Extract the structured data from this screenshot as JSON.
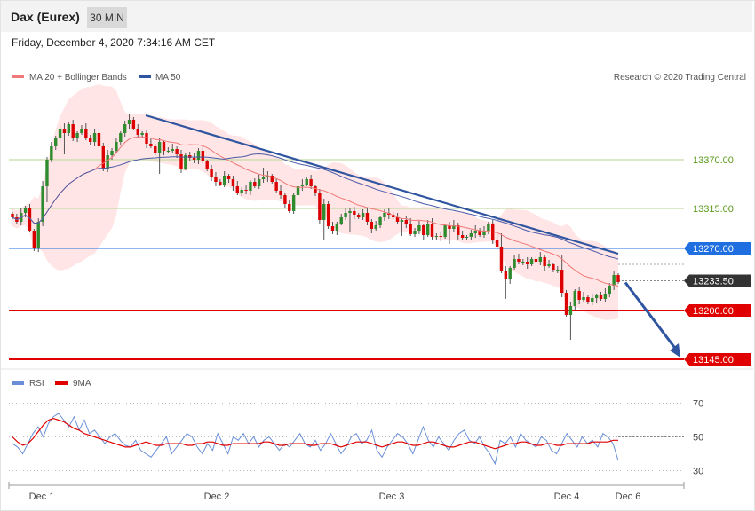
{
  "header": {
    "title": "Dax (Eurex)",
    "timeframe": "30 MIN"
  },
  "timestamp": "Friday, December 4, 2020 7:34:16 AM CET",
  "legend": {
    "ma20_label": "MA 20 + Bollinger Bands",
    "ma50_label": "MA 50",
    "credit": "Research © 2020 Trading Central",
    "rsi_label": "RSI",
    "rsi_ma_label": "9MA"
  },
  "colors": {
    "up": "#2e8b2e",
    "down": "#dd0000",
    "ma20": "#f07878",
    "bands": "#ffdcdc",
    "ma50": "#4a5aa8",
    "trendline": "#2f55a0",
    "support_line": "#e00000",
    "resistance_green": "#c8dca8",
    "blue_level": "#1f6fe0",
    "rsi": "#6a8fd8",
    "rsi_ma": "#e00000"
  },
  "chart_data": [
    {
      "type": "candlestick",
      "title": "",
      "instrument": "Dax (Eurex)",
      "interval": "30 MIN",
      "x_ticks": [
        "Dec 1",
        "Dec 2",
        "Dec 3",
        "Dec 4",
        "Dec 6"
      ],
      "y_range": [
        13140,
        13450
      ],
      "price_levels": [
        {
          "value": 13370.0,
          "label": "13370.00",
          "kind": "resistance",
          "color": "#5a9a1a"
        },
        {
          "value": 13315.0,
          "label": "13315.00",
          "kind": "resistance",
          "color": "#5a9a1a"
        },
        {
          "value": 13270.0,
          "label": "13270.00",
          "kind": "pivot",
          "color": "#1f6fe0"
        },
        {
          "value": 13233.5,
          "label": "13233.50",
          "kind": "last_price",
          "color": "#333333"
        },
        {
          "value": 13200.0,
          "label": "13200.00",
          "kind": "support",
          "color": "#e00000"
        },
        {
          "value": 13145.0,
          "label": "13145.00",
          "kind": "support",
          "color": "#e00000"
        }
      ],
      "trendline": {
        "from": [
          0.22,
          13420
        ],
        "to": [
          1.0,
          13264
        ]
      },
      "projection": {
        "from": 13233.5,
        "to": 13145,
        "direction": "down"
      },
      "series": [
        {
          "name": "MA 20 + Bollinger Bands",
          "role": "ma20"
        },
        {
          "name": "MA 50",
          "role": "ma50"
        }
      ],
      "closes": [
        13305,
        13300,
        13310,
        13315,
        13290,
        13270,
        13300,
        13340,
        13370,
        13385,
        13395,
        13405,
        13400,
        13410,
        13395,
        13400,
        13405,
        13395,
        13390,
        13400,
        13385,
        13360,
        13375,
        13380,
        13390,
        13400,
        13410,
        13415,
        13405,
        13398,
        13400,
        13388,
        13385,
        13378,
        13390,
        13380,
        13380,
        13382,
        13376,
        13360,
        13375,
        13372,
        13370,
        13380,
        13368,
        13360,
        13350,
        13345,
        13342,
        13352,
        13348,
        13340,
        13332,
        13336,
        13335,
        13345,
        13340,
        13348,
        13350,
        13352,
        13345,
        13335,
        13330,
        13320,
        13312,
        13330,
        13340,
        13342,
        13348,
        13340,
        13333,
        13302,
        13320,
        13295,
        13290,
        13298,
        13305,
        13310,
        13312,
        13308,
        13305,
        13310,
        13300,
        13292,
        13296,
        13305,
        13310,
        13308,
        13305,
        13300,
        13302,
        13298,
        13286,
        13290,
        13296,
        13285,
        13298,
        13283,
        13284,
        13283,
        13296,
        13292,
        13296,
        13285,
        13282,
        13283,
        13287,
        13290,
        13285,
        13290,
        13298,
        13280,
        13272,
        13245,
        13235,
        13248,
        13258,
        13255,
        13255,
        13252,
        13258,
        13255,
        13260,
        13250,
        13252,
        13246,
        13246,
        13220,
        13195,
        13205,
        13222,
        13212,
        13215,
        13210,
        13214,
        13217,
        13213,
        13219,
        13228,
        13240,
        13232
      ]
    },
    {
      "type": "line",
      "title": "",
      "y_range": [
        25,
        75
      ],
      "y_ticks": [
        70,
        50,
        30
      ],
      "series": [
        {
          "name": "RSI",
          "values": [
            46,
            44,
            40,
            46,
            52,
            56,
            50,
            58,
            62,
            64,
            60,
            56,
            62,
            54,
            60,
            52,
            54,
            50,
            46,
            50,
            52,
            48,
            45,
            44,
            48,
            42,
            40,
            38,
            42,
            46,
            50,
            40,
            44,
            48,
            52,
            50,
            44,
            40,
            46,
            42,
            52,
            46,
            40,
            50,
            48,
            52,
            46,
            50,
            44,
            48,
            50,
            46,
            42,
            46,
            44,
            48,
            52,
            46,
            44,
            48,
            42,
            46,
            52,
            46,
            40,
            44,
            50,
            52,
            46,
            48,
            54,
            42,
            38,
            44,
            48,
            52,
            50,
            46,
            40,
            48,
            56,
            48,
            44,
            50,
            46,
            42,
            48,
            52,
            54,
            48,
            46,
            50,
            44,
            40,
            34,
            48,
            46,
            50,
            44,
            52,
            48,
            46,
            44,
            50,
            48,
            42,
            40,
            46,
            52,
            48,
            44,
            50,
            46,
            48,
            44,
            52,
            50,
            46,
            36
          ]
        },
        {
          "name": "9MA",
          "values": [
            50,
            47,
            45,
            46,
            49,
            53,
            57,
            60,
            61,
            60,
            59,
            57,
            55,
            54,
            52,
            51,
            50,
            49,
            48,
            47,
            46,
            45,
            44,
            44,
            45,
            46,
            47,
            46,
            45,
            45,
            46,
            46,
            46,
            46,
            45,
            45,
            46,
            46,
            47,
            47,
            46,
            45,
            45,
            46,
            46,
            46,
            46,
            46,
            46,
            47,
            47,
            46,
            45,
            45,
            46,
            46,
            46,
            46,
            45,
            45,
            46,
            46,
            46,
            45,
            44,
            45,
            46,
            47,
            47,
            47,
            46,
            45,
            44,
            45,
            46,
            47,
            47,
            46,
            45,
            45,
            46,
            47,
            47,
            46,
            45,
            44,
            44,
            45,
            46,
            47,
            47,
            46,
            45,
            44,
            43,
            44,
            45,
            46,
            46,
            47,
            47,
            46,
            45,
            45,
            46,
            46,
            45,
            45,
            46,
            46,
            46,
            46,
            46,
            47,
            47,
            47,
            47,
            48,
            48
          ]
        }
      ]
    }
  ]
}
